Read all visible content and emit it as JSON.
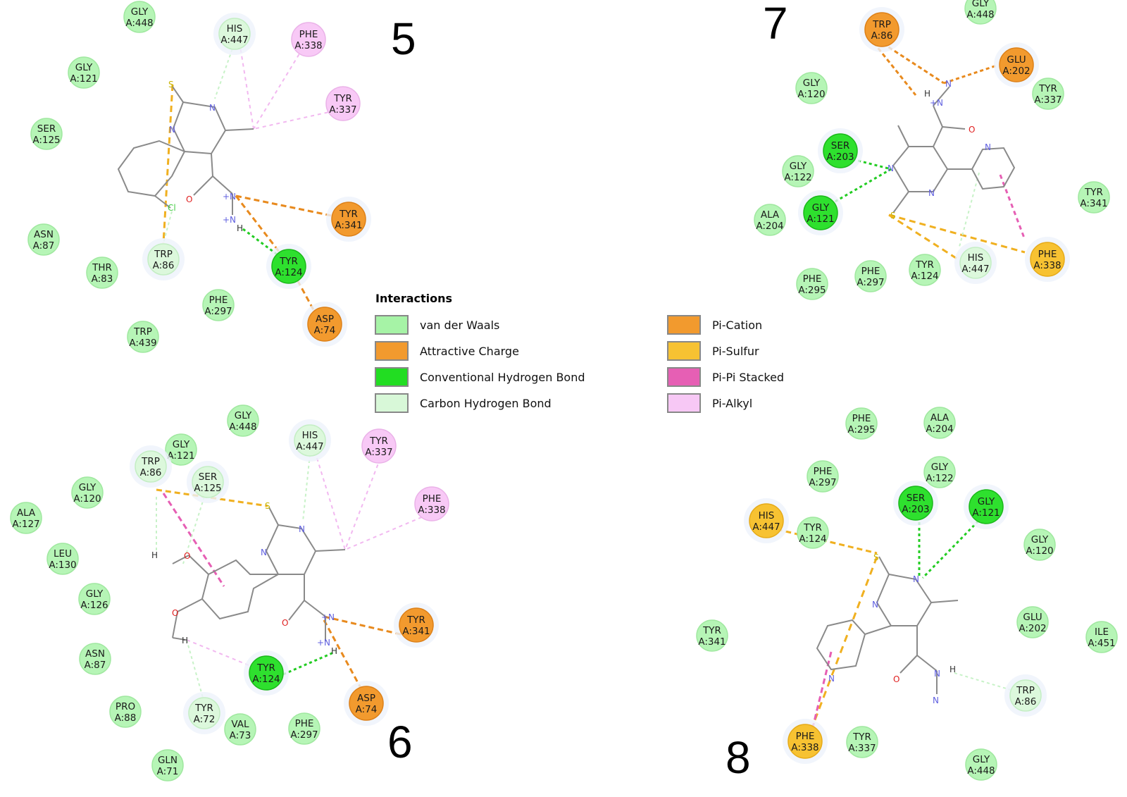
{
  "colors": {
    "vdw": "#a6f3a6",
    "vdw_stroke": "#8fe08f",
    "hbond": "#22dd22",
    "hbond_dark": "#11b011",
    "attractive": "#f29a2e",
    "cation": "#f29a2e",
    "sulfur": "#f7c232",
    "pipi": "#e65fb4",
    "pialkyl": "#f7c8f5",
    "carbonh": "#d8f8d8",
    "bond": "#8a8a8a",
    "O": "#e02020",
    "N": "#6060e0",
    "S": "#c8b400",
    "Cl": "#44cc44"
  },
  "panel_labels": [
    "5",
    "6",
    "7",
    "8"
  ],
  "legend": {
    "title": "Interactions",
    "items": [
      {
        "label": "van der Waals",
        "color": "#a6f3a6"
      },
      {
        "label": "Attractive Charge",
        "color": "#f29a2e"
      },
      {
        "label": "Conventional Hydrogen Bond",
        "color": "#22dd22"
      },
      {
        "label": "Carbon Hydrogen Bond",
        "color": "#d8f8d8"
      },
      {
        "label": "Pi-Cation",
        "color": "#f29a2e"
      },
      {
        "label": "Pi-Sulfur",
        "color": "#f7c232"
      },
      {
        "label": "Pi-Pi Stacked",
        "color": "#e65fb4"
      },
      {
        "label": "Pi-Alkyl",
        "color": "#f7c8f5"
      }
    ]
  },
  "atoms": {
    "S": "S",
    "N": "N",
    "O": "O",
    "Cl": "Cl",
    "H": "H",
    "Np": "+N",
    "NpH": "+N"
  },
  "residues": {
    "p5": [
      {
        "n": "GLY",
        "id": "A:448",
        "t": "vdw"
      },
      {
        "n": "HIS",
        "id": "A:447",
        "t": "carbonh"
      },
      {
        "n": "PHE",
        "id": "A:338",
        "t": "pialkyl"
      },
      {
        "n": "GLY",
        "id": "A:121",
        "t": "vdw"
      },
      {
        "n": "TYR",
        "id": "A:337",
        "t": "pialkyl"
      },
      {
        "n": "SER",
        "id": "A:125",
        "t": "vdw"
      },
      {
        "n": "TYR",
        "id": "A:341",
        "t": "attractive"
      },
      {
        "n": "ASN",
        "id": "A:87",
        "t": "vdw"
      },
      {
        "n": "TRP",
        "id": "A:86",
        "t": "carbonh"
      },
      {
        "n": "TYR",
        "id": "A:124",
        "t": "hbond"
      },
      {
        "n": "THR",
        "id": "A:83",
        "t": "vdw"
      },
      {
        "n": "PHE",
        "id": "A:297",
        "t": "vdw"
      },
      {
        "n": "ASP",
        "id": "A:74",
        "t": "attractive"
      },
      {
        "n": "TRP",
        "id": "A:439",
        "t": "vdw"
      }
    ],
    "p6": [
      {
        "n": "GLY",
        "id": "A:448",
        "t": "vdw"
      },
      {
        "n": "HIS",
        "id": "A:447",
        "t": "carbonh"
      },
      {
        "n": "TYR",
        "id": "A:337",
        "t": "pialkyl"
      },
      {
        "n": "GLY",
        "id": "A:121",
        "t": "vdw"
      },
      {
        "n": "TRP",
        "id": "A:86",
        "t": "carbonh"
      },
      {
        "n": "SER",
        "id": "A:125",
        "t": "carbonh"
      },
      {
        "n": "GLY",
        "id": "A:120",
        "t": "vdw"
      },
      {
        "n": "PHE",
        "id": "A:338",
        "t": "pialkyl"
      },
      {
        "n": "ALA",
        "id": "A:127",
        "t": "vdw"
      },
      {
        "n": "LEU",
        "id": "A:130",
        "t": "vdw"
      },
      {
        "n": "GLY",
        "id": "A:126",
        "t": "vdw"
      },
      {
        "n": "TYR",
        "id": "A:341",
        "t": "attractive"
      },
      {
        "n": "ASN",
        "id": "A:87",
        "t": "vdw"
      },
      {
        "n": "TYR",
        "id": "A:124",
        "t": "hbond"
      },
      {
        "n": "TYR",
        "id": "A:72",
        "t": "carbonh"
      },
      {
        "n": "ASP",
        "id": "A:74",
        "t": "attractive"
      },
      {
        "n": "PRO",
        "id": "A:88",
        "t": "vdw"
      },
      {
        "n": "VAL",
        "id": "A:73",
        "t": "vdw"
      },
      {
        "n": "PHE",
        "id": "A:297",
        "t": "vdw"
      },
      {
        "n": "GLN",
        "id": "A:71",
        "t": "vdw"
      }
    ],
    "p7": [
      {
        "n": "GLY",
        "id": "A:448",
        "t": "vdw"
      },
      {
        "n": "TRP",
        "id": "A:86",
        "t": "attractive"
      },
      {
        "n": "GLU",
        "id": "A:202",
        "t": "attractive"
      },
      {
        "n": "GLY",
        "id": "A:120",
        "t": "vdw"
      },
      {
        "n": "TYR",
        "id": "A:337",
        "t": "vdw"
      },
      {
        "n": "SER",
        "id": "A:203",
        "t": "hbond"
      },
      {
        "n": "GLY",
        "id": "A:122",
        "t": "vdw"
      },
      {
        "n": "TYR",
        "id": "A:341",
        "t": "vdw"
      },
      {
        "n": "GLY",
        "id": "A:121",
        "t": "hbond"
      },
      {
        "n": "ALA",
        "id": "A:204",
        "t": "vdw"
      },
      {
        "n": "HIS",
        "id": "A:447",
        "t": "carbonh"
      },
      {
        "n": "PHE",
        "id": "A:338",
        "t": "sulfur"
      },
      {
        "n": "PHE",
        "id": "A:295",
        "t": "vdw"
      },
      {
        "n": "PHE",
        "id": "A:297",
        "t": "vdw"
      },
      {
        "n": "TYR",
        "id": "A:124",
        "t": "vdw"
      }
    ],
    "p8": [
      {
        "n": "PHE",
        "id": "A:295",
        "t": "vdw"
      },
      {
        "n": "ALA",
        "id": "A:204",
        "t": "vdw"
      },
      {
        "n": "PHE",
        "id": "A:297",
        "t": "vdw"
      },
      {
        "n": "GLY",
        "id": "A:122",
        "t": "vdw"
      },
      {
        "n": "SER",
        "id": "A:203",
        "t": "hbond"
      },
      {
        "n": "GLY",
        "id": "A:121",
        "t": "hbond"
      },
      {
        "n": "HIS",
        "id": "A:447",
        "t": "sulfur"
      },
      {
        "n": "TYR",
        "id": "A:124",
        "t": "vdw"
      },
      {
        "n": "GLY",
        "id": "A:120",
        "t": "vdw"
      },
      {
        "n": "GLU",
        "id": "A:202",
        "t": "vdw"
      },
      {
        "n": "ILE",
        "id": "A:451",
        "t": "vdw"
      },
      {
        "n": "TYR",
        "id": "A:341",
        "t": "vdw"
      },
      {
        "n": "TRP",
        "id": "A:86",
        "t": "carbonh"
      },
      {
        "n": "PHE",
        "id": "A:338",
        "t": "sulfur"
      },
      {
        "n": "TYR",
        "id": "A:337",
        "t": "vdw"
      },
      {
        "n": "GLY",
        "id": "A:448",
        "t": "vdw"
      }
    ]
  }
}
